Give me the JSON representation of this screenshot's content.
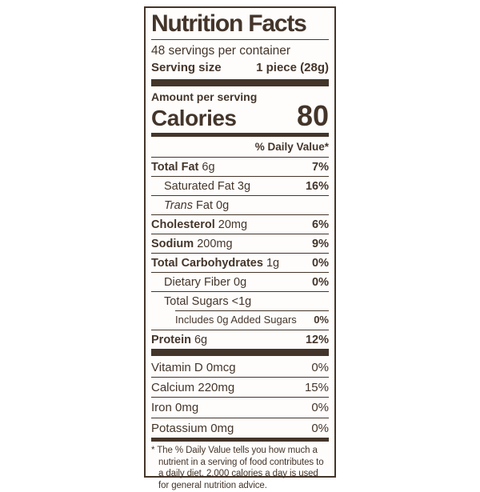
{
  "label": {
    "title": "Nutrition Facts",
    "servings_per_container": "48 servings per container",
    "serving_size_label": "Serving size",
    "serving_size_value": "1 piece (28g)",
    "amount_per_serving": "Amount per serving",
    "calories_label": "Calories",
    "calories_value": "80",
    "daily_value_header": "% Daily Value*",
    "rows": [
      {
        "name": "Total Fat",
        "amount": "6g",
        "dv": "7%"
      },
      {
        "name": "Saturated Fat",
        "amount": "3g",
        "dv": "16%"
      },
      {
        "name_italic": "Trans",
        "name": "Fat",
        "amount": "0g",
        "dv": ""
      },
      {
        "name": "Cholesterol",
        "amount": "20mg",
        "dv": "6%"
      },
      {
        "name": "Sodium",
        "amount": "200mg",
        "dv": "9%"
      },
      {
        "name": "Total Carbohydrates",
        "amount": "1g",
        "dv": "0%"
      },
      {
        "name": "Dietary Fiber",
        "amount": "0g",
        "dv": "0%"
      },
      {
        "name": "Total Sugars",
        "amount": "<1g",
        "dv": ""
      },
      {
        "name": "Includes 0g Added Sugars",
        "amount": "",
        "dv": "0%"
      },
      {
        "name": "Protein",
        "amount": "6g",
        "dv": "12%"
      }
    ],
    "vitamins": [
      {
        "name": "Vitamin D",
        "amount": "0mcg",
        "dv": "0%"
      },
      {
        "name": "Calcium",
        "amount": "220mg",
        "dv": "15%"
      },
      {
        "name": "Iron",
        "amount": "0mg",
        "dv": "0%"
      },
      {
        "name": "Potassium",
        "amount": "0mg",
        "dv": "0%"
      }
    ],
    "footnote": "* The % Daily Value tells you how much a nutrient in a serving of food contributes to a daily diet. 2,000 calories a day is used for general nutrition advice."
  }
}
